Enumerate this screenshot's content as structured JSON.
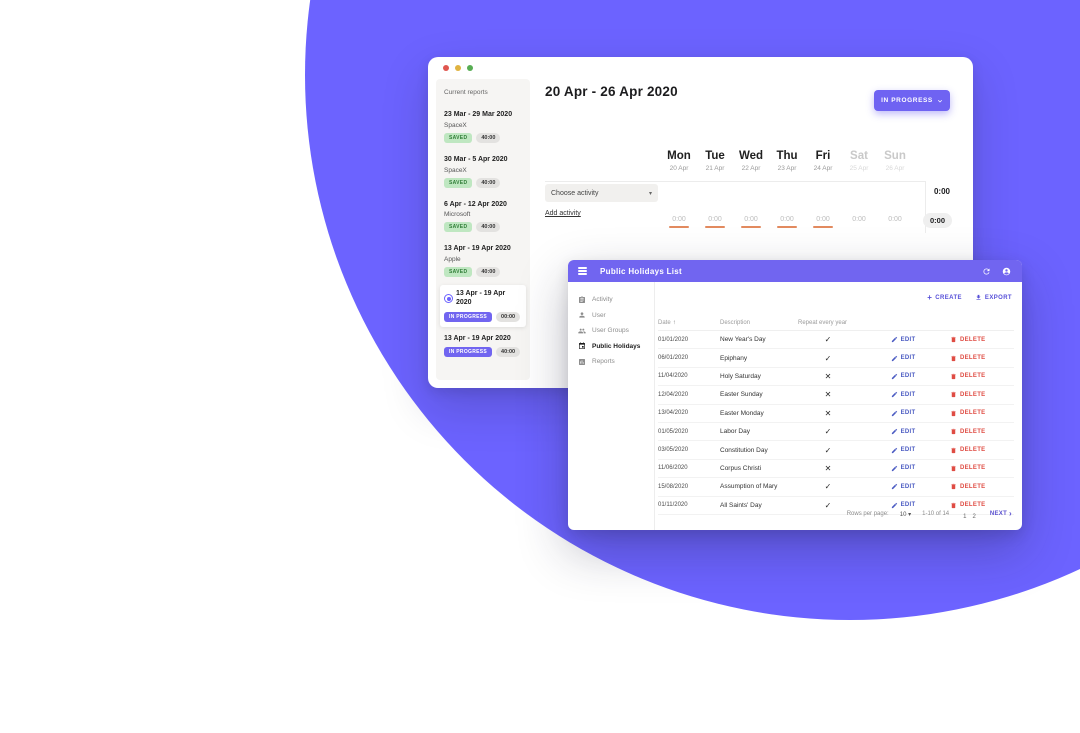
{
  "icons": {
    "check": "✓",
    "cross": "✕",
    "caret": "▾",
    "sort_arrow": "↑",
    "next_chevron": "›",
    "plus": "+"
  },
  "timesheet": {
    "title": "20 Apr - 26 Apr 2020",
    "status_button": "IN PROGRESS",
    "sidebar": {
      "title": "Current reports",
      "reports": [
        {
          "range": "23 Mar - 29 Mar 2020",
          "company": "SpaceX",
          "status": "SAVED",
          "hours": "40:00",
          "in_progress": false,
          "selected": false
        },
        {
          "range": "30 Mar - 5 Apr 2020",
          "company": "SpaceX",
          "status": "SAVED",
          "hours": "40:00",
          "in_progress": false,
          "selected": false
        },
        {
          "range": "6 Apr - 12 Apr 2020",
          "company": "Microsoft",
          "status": "SAVED",
          "hours": "40:00",
          "in_progress": false,
          "selected": false
        },
        {
          "range": "13 Apr - 19 Apr 2020",
          "company": "Apple",
          "status": "SAVED",
          "hours": "40:00",
          "in_progress": false,
          "selected": false
        },
        {
          "range": "13 Apr - 19 Apr 2020",
          "company": "",
          "status": "IN PROGRESS",
          "hours": "00:00",
          "in_progress": true,
          "selected": true
        },
        {
          "range": "13 Apr - 19 Apr 2020",
          "company": "",
          "status": "IN PROGRESS",
          "hours": "40:00",
          "in_progress": true,
          "selected": false
        }
      ]
    },
    "activity_select": "Choose activity",
    "add_activity": "Add activity",
    "activity_total": "0:00",
    "week_total": "0:00",
    "days": [
      {
        "name": "Mon",
        "date": "20 Apr",
        "value": "0:00",
        "weekend": false
      },
      {
        "name": "Tue",
        "date": "21 Apr",
        "value": "0:00",
        "weekend": false
      },
      {
        "name": "Wed",
        "date": "22 Apr",
        "value": "0:00",
        "weekend": false
      },
      {
        "name": "Thu",
        "date": "23 Apr",
        "value": "0:00",
        "weekend": false
      },
      {
        "name": "Fri",
        "date": "24 Apr",
        "value": "0:00",
        "weekend": false
      },
      {
        "name": "Sat",
        "date": "25 Apr",
        "value": "0:00",
        "weekend": true
      },
      {
        "name": "Sun",
        "date": "26 Apr",
        "value": "0:00",
        "weekend": true
      }
    ]
  },
  "holidays": {
    "title": "Public Holidays List",
    "nav": [
      {
        "label": "Activity",
        "icon": "activity-icon",
        "active": false
      },
      {
        "label": "User",
        "icon": "user-icon",
        "active": false
      },
      {
        "label": "User Groups",
        "icon": "user-groups-icon",
        "active": false
      },
      {
        "label": "Public Holidays",
        "icon": "public-holidays-icon",
        "active": true
      },
      {
        "label": "Reports",
        "icon": "reports-icon",
        "active": false
      }
    ],
    "actions": {
      "create": "CREATE",
      "export": "EXPORT"
    },
    "table": {
      "columns": {
        "date": "Date",
        "description": "Description",
        "repeat": "Repeat every year"
      },
      "edit_label": "EDIT",
      "delete_label": "DELETE",
      "rows": [
        {
          "date": "01/01/2020",
          "description": "New Year's Day",
          "repeat": true
        },
        {
          "date": "06/01/2020",
          "description": "Epiphany",
          "repeat": true
        },
        {
          "date": "11/04/2020",
          "description": "Holy Saturday",
          "repeat": false
        },
        {
          "date": "12/04/2020",
          "description": "Easter Sunday",
          "repeat": false
        },
        {
          "date": "13/04/2020",
          "description": "Easter Monday",
          "repeat": false
        },
        {
          "date": "01/05/2020",
          "description": "Labor Day",
          "repeat": true
        },
        {
          "date": "03/05/2020",
          "description": "Constitution Day",
          "repeat": true
        },
        {
          "date": "11/06/2020",
          "description": "Corpus Christi",
          "repeat": false
        },
        {
          "date": "15/08/2020",
          "description": "Assumption of Mary",
          "repeat": true
        },
        {
          "date": "01/11/2020",
          "description": "All Saints' Day",
          "repeat": true
        }
      ]
    },
    "footer": {
      "rows_per_page_label": "Rows per page:",
      "rows_per_page": "10",
      "range": "1-10 of 14",
      "pages": [
        "1",
        "2"
      ],
      "next_label": "NEXT"
    }
  }
}
